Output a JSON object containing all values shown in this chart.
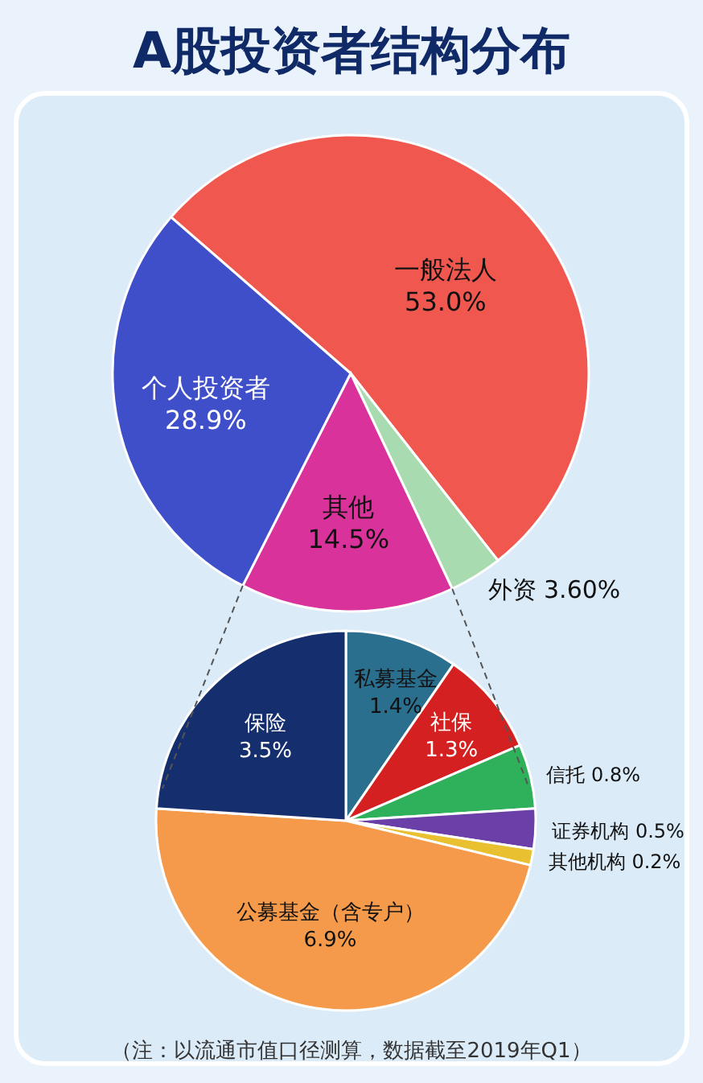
{
  "chart_data": [
    {
      "type": "pie",
      "title": "A股投资者结构分布",
      "categories": [
        "一般法人",
        "外资",
        "其他",
        "个人投资者"
      ],
      "values": [
        53.0,
        3.6,
        14.5,
        28.9
      ],
      "value_labels": [
        "53.0%",
        "3.60%",
        "14.5%",
        "28.9%"
      ],
      "colors": [
        "#f0574f",
        "#a8dcb0",
        "#d9329a",
        "#3e4fc9"
      ]
    },
    {
      "type": "pie",
      "categories": [
        "私募基金",
        "社保",
        "信托",
        "证券机构",
        "其他机构",
        "公募基金（含专户）",
        "保险"
      ],
      "values": [
        1.4,
        1.3,
        0.8,
        0.5,
        0.2,
        6.9,
        3.5
      ],
      "value_labels": [
        "1.4%",
        "1.3%",
        "0.8%",
        "0.5%",
        "0.2%",
        "6.9%",
        "3.5%"
      ],
      "colors": [
        "#2b6f8f",
        "#d42020",
        "#2fb05a",
        "#6a3fa8",
        "#e8c030",
        "#f59a4a",
        "#152e6e"
      ],
      "annotations": [
        "（注：以流通市值口径测算，数据截至2019年Q1）"
      ]
    }
  ]
}
